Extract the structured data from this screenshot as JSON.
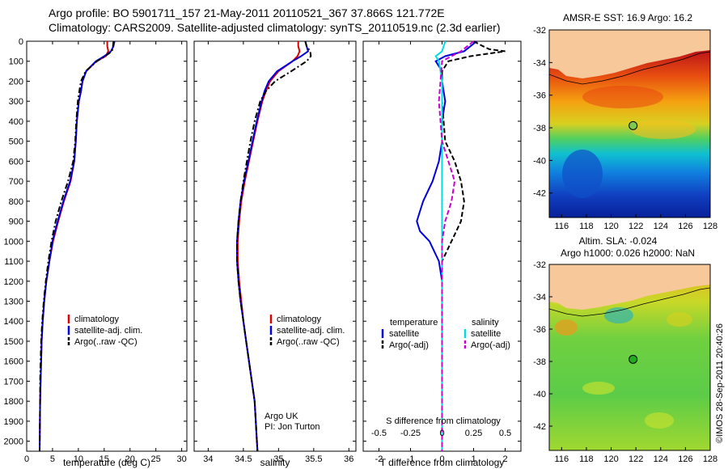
{
  "title_line1": "Argo profile: BO 5901711_157 21-May-2011 20110521_367 37.866S 121.772E",
  "title_line2": "Climatology: CARS2009. Satellite-adjusted climatology: synTS_20110519.nc (2.3d earlier)",
  "chart_data": [
    {
      "type": "line",
      "id": "temperature",
      "xlabel": "temperature (deg C)",
      "xlim": [
        0,
        31
      ],
      "ylim": [
        0,
        2050
      ],
      "y_reversed": true,
      "xticks": [
        0,
        5,
        10,
        15,
        20,
        25,
        30
      ],
      "yticks": [
        0,
        100,
        200,
        300,
        400,
        500,
        600,
        700,
        800,
        900,
        1000,
        1100,
        1200,
        1300,
        1400,
        1500,
        1600,
        1700,
        1800,
        1900,
        2000
      ],
      "legend": [
        "climatology",
        "satellite-adj. clim.",
        "Argo(..raw -QC)"
      ],
      "legend_colors": [
        "#dd0000",
        "#0000dd",
        "#000000"
      ],
      "series": [
        {
          "name": "climatology",
          "color": "#dd0000",
          "style": "solid",
          "x": [
            15.6,
            15.6,
            15.8,
            15.3,
            13.5,
            11.5,
            10.8,
            10.5,
            10.1,
            9.7,
            9.5,
            9.2,
            8.5,
            7.2,
            6.1,
            5.1,
            4.4,
            3.8,
            3.4,
            3.1,
            2.9,
            2.8,
            2.7,
            2.6,
            2.5
          ],
          "y": [
            0,
            25,
            50,
            75,
            100,
            150,
            200,
            250,
            300,
            400,
            500,
            600,
            700,
            800,
            900,
            1000,
            1100,
            1200,
            1300,
            1400,
            1500,
            1600,
            1700,
            1800,
            2050
          ]
        },
        {
          "name": "satellite-adj. clim.",
          "color": "#0000dd",
          "style": "solid",
          "x": [
            17.0,
            16.8,
            16.3,
            15.0,
            13.4,
            11.5,
            10.8,
            10.5,
            10.1,
            9.7,
            9.5,
            9.2,
            8.4,
            7.1,
            6.0,
            5.0,
            4.4,
            3.8,
            3.4,
            3.1,
            2.9,
            2.8,
            2.7,
            2.6,
            2.5
          ],
          "y": [
            0,
            25,
            50,
            75,
            100,
            150,
            200,
            250,
            300,
            400,
            500,
            600,
            700,
            800,
            900,
            1000,
            1100,
            1200,
            1300,
            1400,
            1500,
            1600,
            1700,
            1800,
            2050
          ]
        },
        {
          "name": "Argo(..raw -QC)",
          "color": "#000000",
          "style": "dashdot",
          "x": [
            16.8,
            16.7,
            16.5,
            15.2,
            13.6,
            11.4,
            10.5,
            10.2,
            9.9,
            9.6,
            9.4,
            9.0,
            8.0,
            6.7,
            5.6,
            4.8,
            4.2,
            3.7,
            3.3,
            3.0,
            2.8,
            2.7,
            2.6,
            2.6,
            2.5
          ],
          "y": [
            0,
            25,
            50,
            75,
            100,
            150,
            200,
            250,
            300,
            400,
            500,
            600,
            700,
            800,
            900,
            1000,
            1100,
            1200,
            1300,
            1400,
            1500,
            1600,
            1700,
            1800,
            2050
          ]
        }
      ]
    },
    {
      "type": "line",
      "id": "salinity",
      "xlabel": "salinity",
      "xlim": [
        33.8,
        36.1
      ],
      "ylim": [
        0,
        2050
      ],
      "y_reversed": true,
      "xticks": [
        34,
        34.5,
        35,
        35.5,
        36
      ],
      "legend": [
        "climatology",
        "satellite-adj. clim.",
        "Argo(..raw -QC)"
      ],
      "legend_colors": [
        "#dd0000",
        "#0000dd",
        "#000000"
      ],
      "annotation": [
        "Argo UK",
        "PI: Jon Turton"
      ],
      "series": [
        {
          "name": "climatology",
          "color": "#dd0000",
          "style": "solid",
          "x": [
            35.28,
            35.28,
            35.3,
            35.27,
            35.2,
            35.0,
            34.88,
            34.82,
            34.77,
            34.7,
            34.64,
            34.58,
            34.52,
            34.47,
            34.44,
            34.42,
            34.42,
            34.44,
            34.47,
            34.5,
            34.54,
            34.58,
            34.62,
            34.66,
            34.7
          ],
          "y": [
            0,
            25,
            50,
            75,
            100,
            150,
            200,
            250,
            300,
            400,
            500,
            600,
            700,
            800,
            900,
            1000,
            1100,
            1200,
            1300,
            1400,
            1500,
            1600,
            1700,
            1800,
            2050
          ]
        },
        {
          "name": "satellite-adj. clim.",
          "color": "#0000dd",
          "style": "solid",
          "x": [
            35.38,
            35.4,
            35.42,
            35.32,
            35.2,
            34.98,
            34.86,
            34.8,
            34.76,
            34.69,
            34.63,
            34.57,
            34.51,
            34.46,
            34.43,
            34.41,
            34.41,
            34.43,
            34.46,
            34.5,
            34.54,
            34.58,
            34.62,
            34.66,
            34.7
          ],
          "y": [
            0,
            25,
            50,
            75,
            100,
            150,
            200,
            250,
            300,
            400,
            500,
            600,
            700,
            800,
            900,
            1000,
            1100,
            1200,
            1300,
            1400,
            1500,
            1600,
            1700,
            1800,
            2050
          ]
        },
        {
          "name": "Argo(..raw -QC)",
          "color": "#000000",
          "style": "dashdot",
          "x": [
            35.38,
            35.4,
            35.45,
            35.46,
            35.4,
            35.18,
            34.95,
            34.82,
            34.74,
            34.66,
            34.6,
            34.55,
            34.5,
            34.46,
            34.43,
            34.41,
            34.41,
            34.43,
            34.46,
            34.5,
            34.54,
            34.58,
            34.62,
            34.66,
            34.7
          ],
          "y": [
            0,
            25,
            50,
            75,
            100,
            150,
            200,
            250,
            300,
            400,
            500,
            600,
            700,
            800,
            900,
            1000,
            1100,
            1200,
            1300,
            1400,
            1500,
            1600,
            1700,
            1800,
            2050
          ]
        }
      ]
    },
    {
      "type": "line",
      "id": "difference",
      "xlabel": "T difference from climatology",
      "top_xlabel": "S difference from climatology",
      "xlim": [
        -2.5,
        2.5
      ],
      "ylim": [
        0,
        2050
      ],
      "y_reversed": true,
      "xticks": [
        -2,
        -1,
        0,
        1,
        2
      ],
      "top_ticks": [
        "-0.5",
        "-0.25",
        "0",
        "0.25",
        "0.5"
      ],
      "legend_left_title": "temperature",
      "legend_right_title": "salinity",
      "legend_left": [
        "satellite",
        "Argo(-adj)"
      ],
      "legend_right": [
        "satellite",
        "Argo(-adj)"
      ],
      "legend_left_colors": [
        "#0000dd",
        "#000000"
      ],
      "legend_right_colors": [
        "#00dddd",
        "#cc00cc"
      ],
      "series": [
        {
          "name": "temperature satellite",
          "color": "#0000dd",
          "style": "solid",
          "x": [
            1.1,
            0.9,
            0.7,
            0.1,
            -0.2,
            0.0,
            0.0,
            0.1,
            0.0,
            0.0,
            -0.1,
            -0.3,
            -0.6,
            -0.8,
            -0.7,
            -0.4,
            -0.1,
            0.0,
            0.0,
            0.0,
            0.0,
            0.0,
            0.0,
            0.0
          ],
          "y": [
            0,
            25,
            50,
            75,
            100,
            150,
            200,
            300,
            400,
            500,
            600,
            700,
            800,
            900,
            950,
            1000,
            1100,
            1200,
            1400,
            1600,
            1800,
            1900,
            2000,
            2050
          ]
        },
        {
          "name": "temperature Argo(-adj)",
          "color": "#000000",
          "style": "dashed",
          "x": [
            1.0,
            1.3,
            1.5,
            2.0,
            0.9,
            0.2,
            0.0,
            0.0,
            0.0,
            0.1,
            0.4,
            0.6,
            0.7,
            0.6,
            0.3,
            0.0,
            0.0,
            0.0,
            0.0,
            0.0,
            0.0,
            0.0
          ],
          "y": [
            0,
            25,
            40,
            50,
            75,
            100,
            150,
            200,
            300,
            500,
            600,
            700,
            800,
            900,
            1000,
            1100,
            1200,
            1400,
            1600,
            1800,
            2000,
            2050
          ]
        },
        {
          "name": "salinity satellite",
          "color": "#00dddd",
          "style": "solid",
          "x": [
            0.1,
            0.0,
            -0.2,
            -0.1,
            0.0,
            0.0,
            0.0,
            0.0,
            0.0,
            0.0,
            0.0,
            0.0
          ],
          "y": [
            0,
            50,
            75,
            100,
            200,
            400,
            700,
            1000,
            1300,
            1600,
            1900,
            2050
          ]
        },
        {
          "name": "salinity Argo(-adj)",
          "color": "#cc00cc",
          "style": "dashed",
          "x": [
            1.0,
            0.8,
            0.6,
            0.3,
            0.0,
            -0.1,
            0.0,
            0.2,
            0.4,
            0.3,
            0.1,
            0.0,
            0.0,
            0.0,
            0.0
          ],
          "y": [
            0,
            25,
            50,
            75,
            100,
            300,
            500,
            600,
            700,
            800,
            900,
            1000,
            1300,
            1600,
            2050
          ]
        }
      ]
    },
    {
      "type": "heatmap",
      "id": "sst_map",
      "title": "AMSR-E SST: 16.9 Argo: 16.2",
      "xlim": [
        115,
        128
      ],
      "ylim": [
        -43.5,
        -32
      ],
      "xticks": [
        116,
        118,
        120,
        122,
        124,
        126,
        128
      ],
      "yticks": [
        -32,
        -34,
        -36,
        -38,
        -40,
        -42
      ],
      "marker": {
        "lon": 121.772,
        "lat": -37.866,
        "color": "#7ec850"
      }
    },
    {
      "type": "heatmap",
      "id": "sla_map",
      "title_lines": [
        "Altim. SLA: -0.024",
        "Argo h1000: 0.026 h2000: NaN"
      ],
      "xlim": [
        115,
        128
      ],
      "ylim": [
        -43.5,
        -32
      ],
      "xticks": [
        116,
        118,
        120,
        122,
        124,
        126,
        128
      ],
      "yticks": [
        -32,
        -34,
        -36,
        -38,
        -40,
        -42
      ],
      "marker": {
        "lon": 121.772,
        "lat": -37.866,
        "color": "#22aa22"
      }
    }
  ],
  "credit": "©IMOS 28-Sep-2011 20:40:26"
}
